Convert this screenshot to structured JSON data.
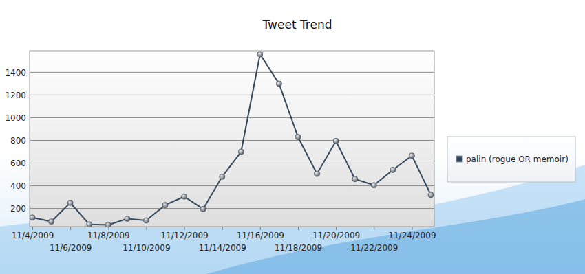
{
  "chart_data": {
    "type": "line",
    "title": "Tweet Trend",
    "categories": [
      "11/4/2009",
      null,
      "11/6/2009",
      null,
      "11/8/2009",
      null,
      "11/10/2009",
      null,
      "11/12/2009",
      null,
      "11/14/2009",
      null,
      "11/16/2009",
      null,
      "11/18/2009",
      null,
      "11/20/2009",
      null,
      "11/22/2009",
      null,
      "11/24/2009",
      null
    ],
    "series": [
      {
        "name": "palin (rogue OR memoir)",
        "color": "#34495e",
        "marker": "circle",
        "values": [
          120,
          85,
          250,
          60,
          55,
          110,
          95,
          230,
          305,
          195,
          480,
          700,
          1560,
          1300,
          830,
          505,
          795,
          460,
          405,
          540,
          665,
          320
        ]
      }
    ],
    "ylim": [
      40,
      1590
    ],
    "yticks": [
      200,
      400,
      600,
      800,
      1000,
      1200,
      1400
    ],
    "grid": true,
    "legend": "right"
  }
}
